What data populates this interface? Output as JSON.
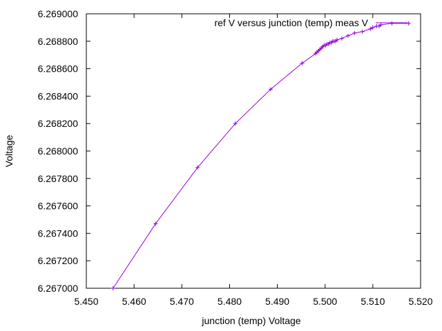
{
  "chart_data": {
    "type": "line",
    "xlabel": "junction (temp) Voltage",
    "ylabel": "Voltage",
    "xlim": [
      5.45,
      5.52
    ],
    "ylim": [
      6.267,
      6.269
    ],
    "x_ticks": [
      "5.450",
      "5.460",
      "5.470",
      "5.480",
      "5.490",
      "5.500",
      "5.510",
      "5.520"
    ],
    "x_tick_values": [
      5.45,
      5.46,
      5.47,
      5.48,
      5.49,
      5.5,
      5.51,
      5.52
    ],
    "y_ticks": [
      "6.267000",
      "6.267200",
      "6.267400",
      "6.267600",
      "6.267800",
      "6.268000",
      "6.268200",
      "6.268400",
      "6.268600",
      "6.268800",
      "6.269000"
    ],
    "y_tick_values": [
      6.267,
      6.2672,
      6.2674,
      6.2676,
      6.2678,
      6.268,
      6.2682,
      6.2684,
      6.2686,
      6.2688,
      6.269
    ],
    "grid": false,
    "legend_position": "top-right",
    "series": [
      {
        "name": "ref V versus junction (temp) meas V",
        "color": "#9400d3",
        "marker": "plus",
        "x": [
          5.4556,
          5.4645,
          5.4733,
          5.4812,
          5.4886,
          5.4952,
          5.498,
          5.4983,
          5.4986,
          5.4989,
          5.4992,
          5.4995,
          5.4998,
          5.5001,
          5.5004,
          5.5007,
          5.501,
          5.5013,
          5.5016,
          5.5019,
          5.5022,
          5.5025,
          5.5035,
          5.5048,
          5.5062,
          5.5078,
          5.5095,
          5.51,
          5.5108,
          5.5113,
          5.5117,
          5.514,
          5.5175
        ],
        "y": [
          6.267,
          6.26747,
          6.26788,
          6.2682,
          6.26845,
          6.26864,
          6.26871,
          6.26872,
          6.26873,
          6.26874,
          6.26875,
          6.26876,
          6.26877,
          6.26877,
          6.26878,
          6.26878,
          6.26879,
          6.26879,
          6.2688,
          6.2688,
          6.2688,
          6.26881,
          6.26882,
          6.26884,
          6.26886,
          6.26887,
          6.26889,
          6.2689,
          6.26891,
          6.26891,
          6.26892,
          6.26893,
          6.26893
        ]
      }
    ]
  }
}
